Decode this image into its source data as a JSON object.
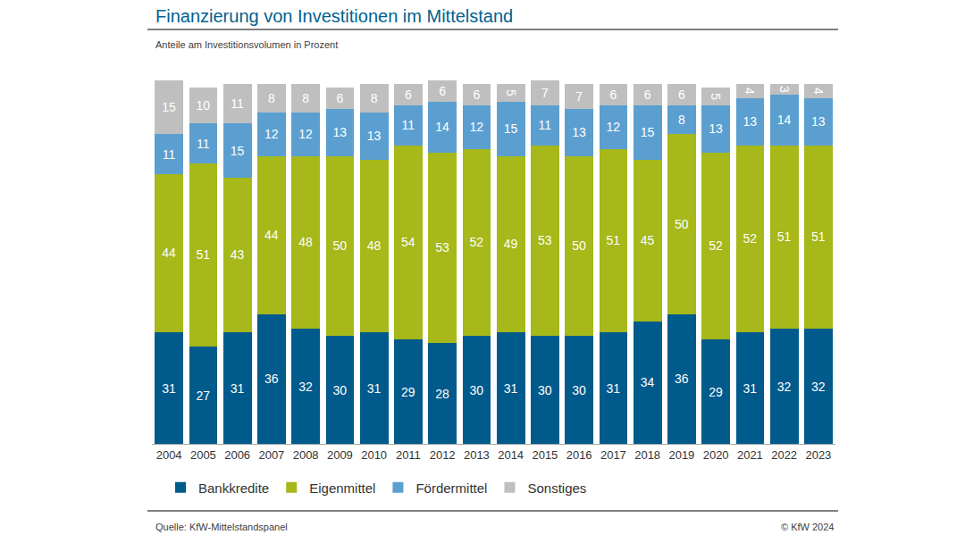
{
  "chart_data": {
    "type": "bar",
    "title": "Finanzierung von Investitionen im Mittelstand",
    "subtitle": "Anteile am Investitionsvolumen in Prozent",
    "source": "Quelle: KfW-Mittelstandspanel",
    "copyright": "© KfW 2024",
    "categories": [
      "2004",
      "2005",
      "2006",
      "2007",
      "2008",
      "2009",
      "2010",
      "2011",
      "2012",
      "2013",
      "2014",
      "2015",
      "2016",
      "2017",
      "2018",
      "2019",
      "2020",
      "2021",
      "2022",
      "2023"
    ],
    "series": [
      {
        "name": "Bankkredite",
        "color": "#005a8c",
        "values": [
          31,
          27,
          31,
          36,
          32,
          30,
          31,
          29,
          28,
          30,
          31,
          30,
          30,
          31,
          34,
          36,
          29,
          31,
          32,
          32
        ]
      },
      {
        "name": "Eigenmittel",
        "color": "#a6b81a",
        "values": [
          44,
          51,
          43,
          44,
          48,
          50,
          48,
          54,
          53,
          52,
          49,
          53,
          50,
          51,
          45,
          50,
          52,
          52,
          51,
          51
        ]
      },
      {
        "name": "Fördermittel",
        "color": "#5b9fd0",
        "values": [
          11,
          11,
          15,
          12,
          12,
          13,
          13,
          11,
          14,
          12,
          15,
          11,
          13,
          12,
          15,
          8,
          13,
          13,
          14,
          13
        ]
      },
      {
        "name": "Sonstiges",
        "color": "#bfbfbf",
        "values": [
          15,
          10,
          11,
          8,
          8,
          6,
          8,
          6,
          6,
          6,
          5,
          7,
          7,
          6,
          6,
          6,
          5,
          4,
          3,
          4
        ]
      }
    ],
    "ylim": [
      0,
      101
    ],
    "stacked": true,
    "data_labels": true,
    "tick_labels": "x",
    "grid": false,
    "legend": "bottom left"
  }
}
